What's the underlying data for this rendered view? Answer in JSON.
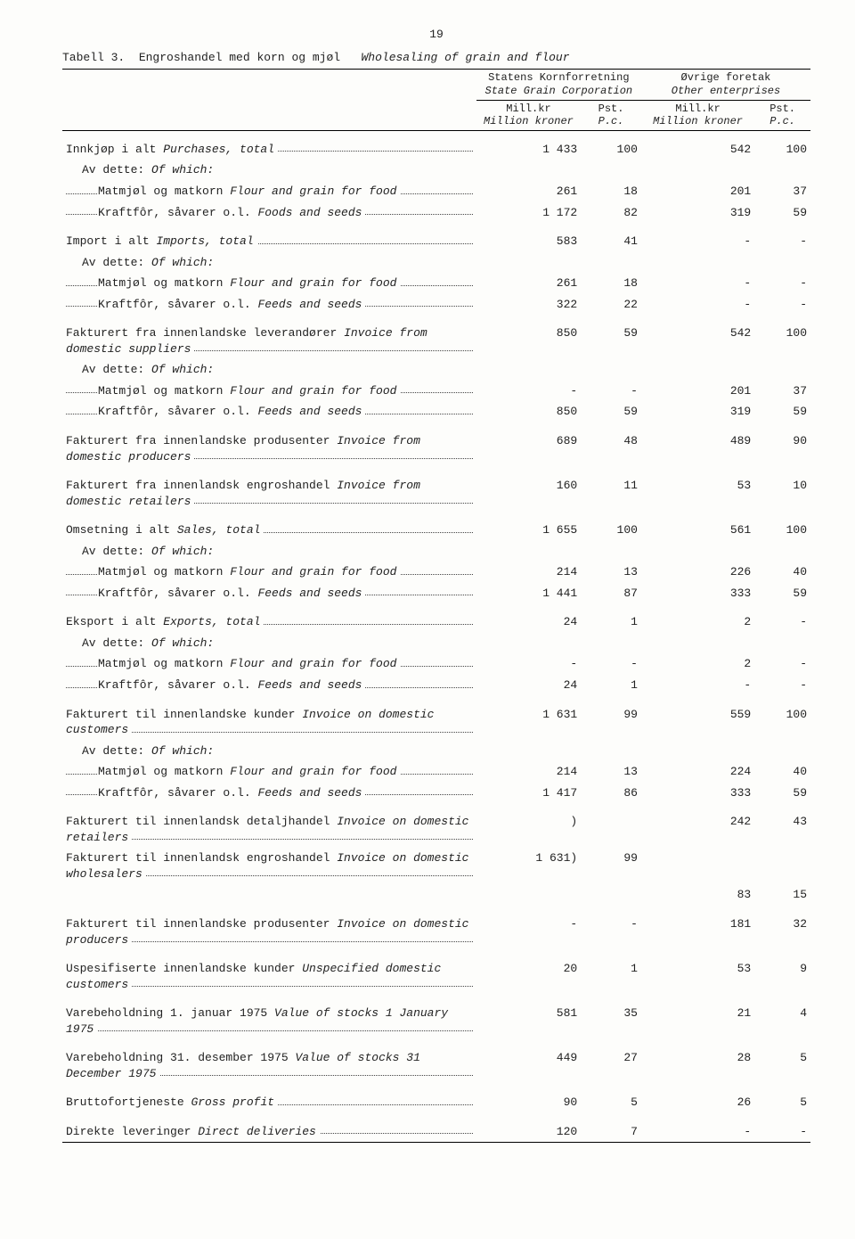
{
  "page_number": "19",
  "caption_no": "Tabell 3.",
  "caption_nb": "Engroshandel med korn og mjøl",
  "caption_en": "Wholesaling of grain and flour",
  "header": {
    "col1_nb": "Statens\nKornforretning",
    "col1_en": "State Grain\nCorporation",
    "col2_nb": "Øvrige foretak",
    "col2_en": "Other\nenterprises",
    "sub_mill_nb": "Mill.kr",
    "sub_mill_en": "Million kroner",
    "sub_pst_nb": "Pst.",
    "sub_pst_en": "P.c."
  },
  "rows": [
    {
      "gap": true,
      "indent": 0,
      "nb": "Innkjøp i alt",
      "en": "Purchases, total",
      "v": [
        "1 433",
        "100",
        "542",
        "100"
      ]
    },
    {
      "indent": 1,
      "nb": "Av dette:",
      "en": "Of which:",
      "v": [
        "",
        "",
        "",
        ""
      ],
      "nodots": true
    },
    {
      "indent": 2,
      "nb": "Matmjøl og matkorn",
      "en": "Flour and grain for food",
      "v": [
        "261",
        "18",
        "201",
        "37"
      ]
    },
    {
      "indent": 2,
      "nb": "Kraftfôr, såvarer o.l.",
      "en": "Foods and seeds",
      "v": [
        "1 172",
        "82",
        "319",
        "59"
      ]
    },
    {
      "gap": true,
      "indent": 0,
      "nb": "Import i alt",
      "en": "Imports, total",
      "v": [
        "583",
        "41",
        "-",
        "-"
      ]
    },
    {
      "indent": 1,
      "nb": "Av dette:",
      "en": "Of which:",
      "v": [
        "",
        "",
        "",
        ""
      ],
      "nodots": true
    },
    {
      "indent": 2,
      "nb": "Matmjøl og matkorn",
      "en": "Flour and grain for food",
      "v": [
        "261",
        "18",
        "-",
        "-"
      ]
    },
    {
      "indent": 2,
      "nb": "Kraftfôr, såvarer o.l.",
      "en": "Feeds and seeds",
      "v": [
        "322",
        "22",
        "-",
        "-"
      ]
    },
    {
      "gap": true,
      "indent": 0,
      "nb": "Fakturert fra innenlandske leverandører",
      "en": "Invoice from domestic suppliers",
      "v": [
        "850",
        "59",
        "542",
        "100"
      ],
      "twoline": true
    },
    {
      "indent": 1,
      "nb": "Av dette:",
      "en": "Of which:",
      "v": [
        "",
        "",
        "",
        ""
      ],
      "nodots": true
    },
    {
      "indent": 2,
      "nb": "Matmjøl og matkorn",
      "en": "Flour and grain for food",
      "v": [
        "-",
        "-",
        "201",
        "37"
      ]
    },
    {
      "indent": 2,
      "nb": "Kraftfôr, såvarer o.l.",
      "en": "Feeds and seeds",
      "v": [
        "850",
        "59",
        "319",
        "59"
      ]
    },
    {
      "gap": true,
      "indent": 0,
      "nb": "Fakturert fra innenlandske produsenter",
      "en": "Invoice from domestic producers",
      "v": [
        "689",
        "48",
        "489",
        "90"
      ],
      "twoline": true
    },
    {
      "gap": true,
      "indent": 0,
      "nb": "Fakturert fra innenlandsk engroshandel",
      "en": "Invoice from domestic retailers",
      "v": [
        "160",
        "11",
        "53",
        "10"
      ],
      "twoline": true
    },
    {
      "gap": true,
      "indent": 0,
      "nb": "Omsetning i alt",
      "en": "Sales, total",
      "v": [
        "1 655",
        "100",
        "561",
        "100"
      ]
    },
    {
      "indent": 1,
      "nb": "Av dette:",
      "en": "Of which:",
      "v": [
        "",
        "",
        "",
        ""
      ],
      "nodots": true
    },
    {
      "indent": 2,
      "nb": "Matmjøl og matkorn",
      "en": "Flour and grain for food",
      "v": [
        "214",
        "13",
        "226",
        "40"
      ]
    },
    {
      "indent": 2,
      "nb": "Kraftfôr, såvarer o.l.",
      "en": "Feeds and seeds",
      "v": [
        "1 441",
        "87",
        "333",
        "59"
      ]
    },
    {
      "gap": true,
      "indent": 0,
      "nb": "Eksport i alt",
      "en": "Exports, total",
      "v": [
        "24",
        "1",
        "2",
        "-"
      ]
    },
    {
      "indent": 1,
      "nb": "Av dette:",
      "en": "Of which:",
      "v": [
        "",
        "",
        "",
        ""
      ],
      "nodots": true
    },
    {
      "indent": 2,
      "nb": "Matmjøl og matkorn",
      "en": "Flour and grain for food",
      "v": [
        "-",
        "-",
        "2",
        "-"
      ]
    },
    {
      "indent": 2,
      "nb": "Kraftfôr, såvarer o.l.",
      "en": "Feeds and seeds",
      "v": [
        "24",
        "1",
        "-",
        "-"
      ]
    },
    {
      "gap": true,
      "indent": 0,
      "nb": "Fakturert til innenlandske kunder",
      "en": "Invoice on domestic customers",
      "v": [
        "1 631",
        "99",
        "559",
        "100"
      ],
      "twoline": true
    },
    {
      "indent": 1,
      "nb": "Av dette:",
      "en": "Of which:",
      "v": [
        "",
        "",
        "",
        ""
      ],
      "nodots": true
    },
    {
      "indent": 2,
      "nb": "Matmjøl og matkorn",
      "en": "Flour and grain for food",
      "v": [
        "214",
        "13",
        "224",
        "40"
      ]
    },
    {
      "indent": 2,
      "nb": "Kraftfôr, såvarer o.l.",
      "en": "Feeds and seeds",
      "v": [
        "1 417",
        "86",
        "333",
        "59"
      ]
    },
    {
      "gap": true,
      "indent": 0,
      "nb": "Fakturert til innenlandsk detaljhandel",
      "en": "Invoice on domestic retailers",
      "v": [
        ")",
        "",
        "242",
        "43"
      ],
      "twoline": true
    },
    {
      "indent": 0,
      "nb": "Fakturert til innenlandsk engroshandel",
      "en": "Invoice on domestic wholesalers",
      "v": [
        "1 631)",
        "99",
        "",
        ""
      ],
      "special": "brace",
      "twoline": true
    },
    {
      "indent": 0,
      "nb": "",
      "en": "",
      "v": [
        "",
        "",
        "83",
        "15"
      ],
      "nodots": true,
      "nolabel": true
    },
    {
      "gap": true,
      "indent": 0,
      "nb": "Fakturert til innenlandske produsenter",
      "en": "Invoice on domestic producers",
      "v": [
        "-",
        "-",
        "181",
        "32"
      ],
      "twoline": true
    },
    {
      "gap": true,
      "indent": 0,
      "nb": "Uspesifiserte innenlandske kunder",
      "en": "Unspecified domestic customers",
      "v": [
        "20",
        "1",
        "53",
        "9"
      ],
      "twoline": true
    },
    {
      "gap": true,
      "indent": 0,
      "nb": "Varebeholdning 1. januar 1975",
      "en": "Value of stocks 1 January 1975",
      "v": [
        "581",
        "35",
        "21",
        "4"
      ],
      "twoline": true
    },
    {
      "gap": true,
      "indent": 0,
      "nb": "Varebeholdning 31. desember 1975",
      "en": "Value of stocks 31 December 1975",
      "v": [
        "449",
        "27",
        "28",
        "5"
      ],
      "twoline": true
    },
    {
      "gap": true,
      "indent": 0,
      "nb": "Bruttofortjeneste",
      "en": "Gross profit",
      "v": [
        "90",
        "5",
        "26",
        "5"
      ]
    },
    {
      "gap": true,
      "indent": 0,
      "nb": "Direkte leveringer",
      "en": "Direct deliveries",
      "v": [
        "120",
        "7",
        "-",
        "-"
      ]
    }
  ]
}
